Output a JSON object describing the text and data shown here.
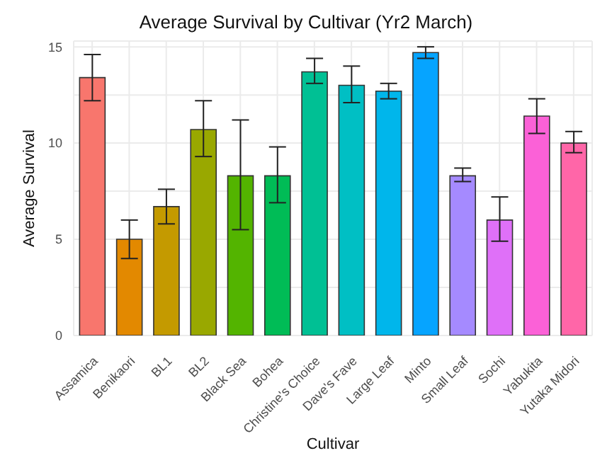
{
  "chart_data": {
    "type": "bar",
    "title": "Average Survival by Cultivar (Yr2 March)",
    "xlabel": "Cultivar",
    "ylabel": "Average Survival",
    "categories": [
      "Assamica",
      "Benikaori",
      "BL1",
      "BL2",
      "Black Sea",
      "Bohea",
      "Christine's Choice",
      "Dave's Fave",
      "Large Leaf",
      "Minto",
      "Small Leaf",
      "Sochi",
      "Yabukita",
      "Yutaka Midori"
    ],
    "values": [
      13.4,
      5.0,
      6.7,
      10.7,
      8.3,
      8.3,
      13.7,
      13.0,
      12.7,
      14.7,
      8.3,
      6.0,
      11.4,
      10.0
    ],
    "colors": [
      "#f8766d",
      "#e38900",
      "#c49a00",
      "#99a800",
      "#53b400",
      "#00bc56",
      "#00c094",
      "#00bfc4",
      "#00b6eb",
      "#06a4ff",
      "#a58aff",
      "#df70f8",
      "#fb61d7",
      "#ff66a8"
    ],
    "errors": [
      [
        12.2,
        14.6
      ],
      [
        4.0,
        6.0
      ],
      [
        5.8,
        7.6
      ],
      [
        9.3,
        12.2
      ],
      [
        5.5,
        11.2
      ],
      [
        6.9,
        9.8
      ],
      [
        13.1,
        14.4
      ],
      [
        12.1,
        14.0
      ],
      [
        12.3,
        13.1
      ],
      [
        14.4,
        15.0
      ],
      [
        8.0,
        8.7
      ],
      [
        4.9,
        7.2
      ],
      [
        10.5,
        12.3
      ],
      [
        9.5,
        10.6
      ]
    ],
    "ylim": [
      0,
      15.3
    ],
    "yticks": [
      0,
      {
        "value": 2.5,
        "label": null
      },
      5,
      {
        "value": 7.5,
        "label": null
      },
      10,
      {
        "value": 12.5,
        "label": null
      },
      15
    ],
    "grid": true
  }
}
